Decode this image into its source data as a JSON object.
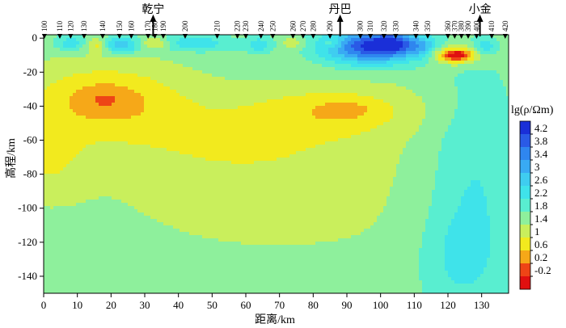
{
  "chart_data": {
    "type": "heatmap",
    "title": "",
    "xlabel": "距离/km",
    "ylabel": "高程/km",
    "xlim": [
      0,
      138
    ],
    "ylim": [
      -150,
      2
    ],
    "x_ticks": [
      0,
      10,
      20,
      30,
      40,
      50,
      60,
      70,
      80,
      90,
      100,
      110,
      120,
      130
    ],
    "y_ticks": [
      0,
      -20,
      -40,
      -60,
      -80,
      -100,
      -120,
      -140
    ],
    "colorbar": {
      "label": "lg(ρ/Ωm)",
      "levels": [
        4.2,
        3.8,
        3.4,
        3,
        2.6,
        2.2,
        1.8,
        1.4,
        1,
        0.6,
        0.2,
        -0.2
      ],
      "colors": [
        "#1a2fd8",
        "#2a5ae6",
        "#2f86ef",
        "#39aaf3",
        "#3fcdf0",
        "#3fe3ea",
        "#59eed0",
        "#8ef09c",
        "#c9ef5c",
        "#f2ea1e",
        "#f6a818",
        "#ee4516",
        "#e01010"
      ]
    },
    "stations": [
      {
        "label": "100",
        "x": 0.2
      },
      {
        "label": "110",
        "x": 4.8
      },
      {
        "label": "120",
        "x": 8.0
      },
      {
        "label": "130",
        "x": 12.0
      },
      {
        "label": "140",
        "x": 17.5
      },
      {
        "label": "150",
        "x": 22.5
      },
      {
        "label": "160",
        "x": 26.0
      },
      {
        "label": "170",
        "x": 31.0
      },
      {
        "label": "180",
        "x": 33.0
      },
      {
        "label": "190",
        "x": 35.5
      },
      {
        "label": "200",
        "x": 42.0
      },
      {
        "label": "210",
        "x": 51.5
      },
      {
        "label": "220",
        "x": 57.5
      },
      {
        "label": "230",
        "x": 60.0
      },
      {
        "label": "240",
        "x": 64.5
      },
      {
        "label": "250",
        "x": 68.0
      },
      {
        "label": "260",
        "x": 74.0
      },
      {
        "label": "270",
        "x": 77.0
      },
      {
        "label": "280",
        "x": 80.0
      },
      {
        "label": "290",
        "x": 85.0
      },
      {
        "label": "300",
        "x": 94.0
      },
      {
        "label": "310",
        "x": 97.0
      },
      {
        "label": "320",
        "x": 101.0
      },
      {
        "label": "330",
        "x": 104.5
      },
      {
        "label": "340",
        "x": 110.5
      },
      {
        "label": "350",
        "x": 114.0
      },
      {
        "label": "360",
        "x": 120.0
      },
      {
        "label": "370",
        "x": 122.0
      },
      {
        "label": "380",
        "x": 124.0
      },
      {
        "label": "390",
        "x": 126.0
      },
      {
        "label": "400",
        "x": 128.5
      },
      {
        "label": "410",
        "x": 133.0
      },
      {
        "label": "420",
        "x": 137.0
      }
    ],
    "towns": [
      {
        "label": "乾宁",
        "x": 32.5
      },
      {
        "label": "丹巴",
        "x": 88.0
      },
      {
        "label": "小金",
        "x": 129.5
      }
    ],
    "field": {
      "background": 1.6,
      "anomalies": [
        {
          "x": 0,
          "y": -70,
          "rx": 12,
          "ry": 22,
          "amp": -0.6
        },
        {
          "x": 18,
          "y": -36,
          "rx": 24,
          "ry": 22,
          "amp": -1.0
        },
        {
          "x": 18,
          "y": -36,
          "rx": 8,
          "ry": 8,
          "amp": -0.35
        },
        {
          "x": 58,
          "y": -60,
          "rx": 40,
          "ry": 26,
          "amp": -0.55
        },
        {
          "x": 88,
          "y": -42,
          "rx": 26,
          "ry": 15,
          "amp": -0.7
        },
        {
          "x": 90,
          "y": -42,
          "rx": 8,
          "ry": 5,
          "amp": -0.35
        },
        {
          "x": 70,
          "y": -100,
          "rx": 70,
          "ry": 45,
          "amp": -0.25
        },
        {
          "x": 128,
          "y": -90,
          "rx": 14,
          "ry": 70,
          "amp": 0.7
        },
        {
          "x": 122,
          "y": -130,
          "rx": 12,
          "ry": 30,
          "amp": 0.4
        },
        {
          "x": 97,
          "y": -5,
          "rx": 14,
          "ry": 10,
          "amp": 2.6
        },
        {
          "x": 104,
          "y": -3,
          "rx": 6,
          "ry": 6,
          "amp": 1.2
        },
        {
          "x": 8,
          "y": -3,
          "rx": 5,
          "ry": 5,
          "amp": 0.9
        },
        {
          "x": 23,
          "y": -4,
          "rx": 6,
          "ry": 5,
          "amp": 1.3
        },
        {
          "x": 45,
          "y": -3,
          "rx": 12,
          "ry": 5,
          "amp": 0.9
        },
        {
          "x": 64,
          "y": -4,
          "rx": 4,
          "ry": 5,
          "amp": 0.8
        },
        {
          "x": 113,
          "y": -6,
          "rx": 4,
          "ry": 6,
          "amp": 0.8
        },
        {
          "x": 131,
          "y": -5,
          "rx": 3,
          "ry": 5,
          "amp": 0.8
        },
        {
          "x": 122,
          "y": -10,
          "rx": 7,
          "ry": 5,
          "amp": -1.8
        },
        {
          "x": 123,
          "y": -10,
          "rx": 3,
          "ry": 2.5,
          "amp": -0.8
        },
        {
          "x": 16,
          "y": -4,
          "rx": 3,
          "ry": 4,
          "amp": -0.9
        },
        {
          "x": 31,
          "y": -3,
          "rx": 3,
          "ry": 3,
          "amp": -0.8
        },
        {
          "x": 35,
          "y": -3,
          "rx": 2.5,
          "ry": 3,
          "amp": -0.7
        },
        {
          "x": 74,
          "y": -3,
          "rx": 3,
          "ry": 3,
          "amp": -0.7
        },
        {
          "x": 86,
          "y": -3,
          "rx": 3,
          "ry": 3,
          "amp": -0.7
        }
      ]
    }
  }
}
